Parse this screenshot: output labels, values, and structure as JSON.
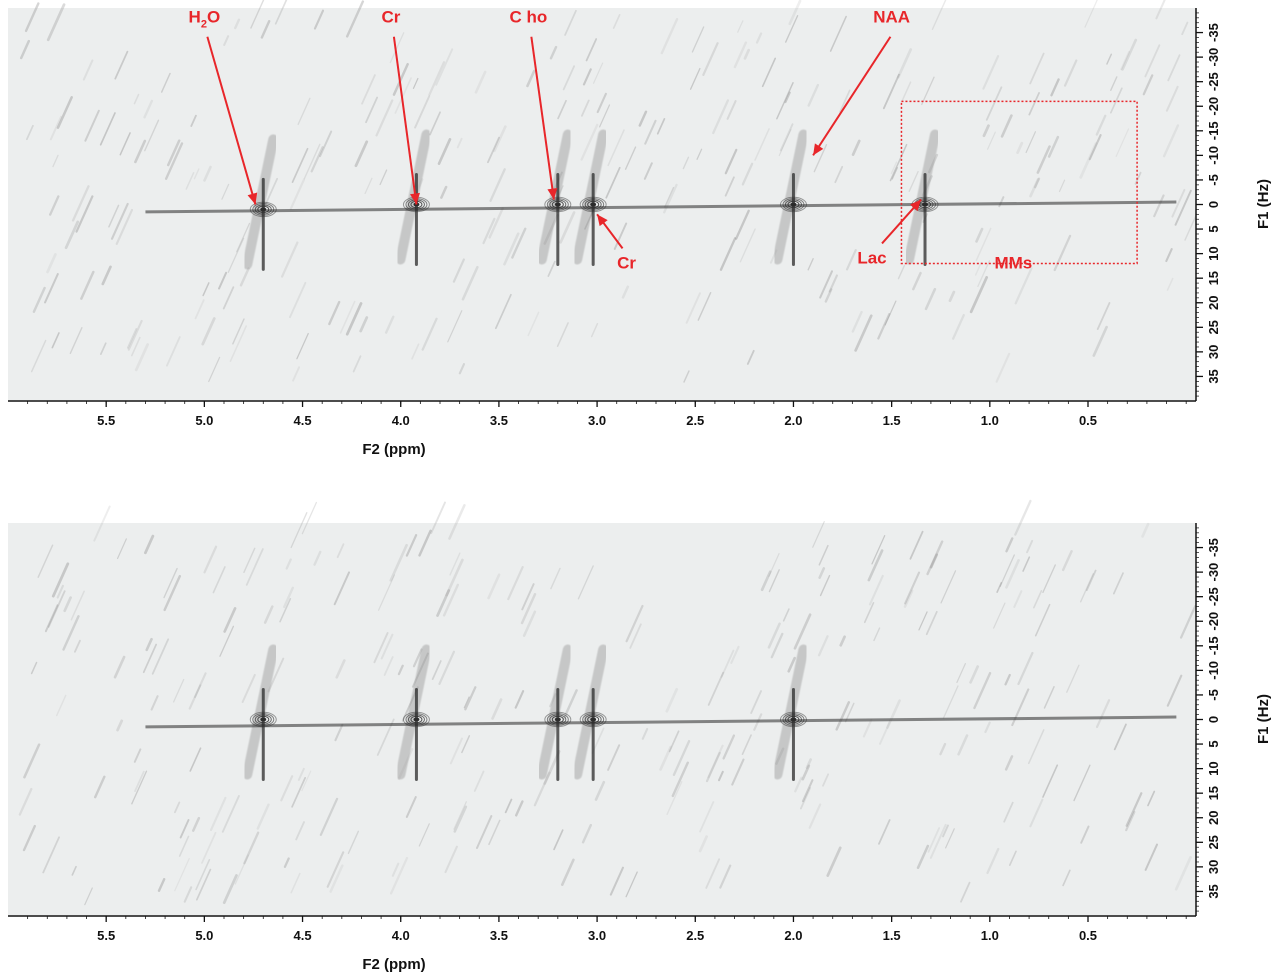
{
  "colors": {
    "plot_background": "#eceeee",
    "contour": "#2b2b2b",
    "contour_light": "#9a9a9a",
    "annotation": "#e8262a"
  },
  "chart_data": [
    {
      "type": "heatmap",
      "panel": "top",
      "xlabel": "F2 (ppm)",
      "ylabel": "F1 (Hz)",
      "xlim": [
        6.0,
        -0.05
      ],
      "ylim": [
        -40,
        40
      ],
      "x_ticks": [
        "5.5",
        "5.0",
        "4.5",
        "4.0",
        "3.5",
        "3.0",
        "2.5",
        "2.0",
        "1.5",
        "1.0",
        "0.5"
      ],
      "x_tick_values": [
        5.5,
        5.0,
        4.5,
        4.0,
        3.5,
        3.0,
        2.5,
        2.0,
        1.5,
        1.0,
        0.5
      ],
      "y_ticks": [
        "-35",
        "-30",
        "-25",
        "-20",
        "-15",
        "-10",
        "-5",
        "0",
        "5",
        "10",
        "15",
        "20",
        "25",
        "30",
        "35"
      ],
      "y_tick_values": [
        -35,
        -30,
        -25,
        -20,
        -15,
        -10,
        -5,
        0,
        5,
        10,
        15,
        20,
        25,
        30,
        35
      ],
      "grid": false,
      "peaks": [
        {
          "name": "H2O",
          "ppm": 4.7,
          "hz": 1
        },
        {
          "name": "Cr",
          "ppm": 3.92,
          "hz": 0
        },
        {
          "name": "Cho",
          "ppm": 3.2,
          "hz": 0
        },
        {
          "name": "Cr",
          "ppm": 3.02,
          "hz": 0
        },
        {
          "name": "NAA",
          "ppm": 2.0,
          "hz": 0
        },
        {
          "name": "Lac",
          "ppm": 1.33,
          "hz": 0
        }
      ],
      "annotations": [
        {
          "text_main": "H",
          "text_sub": "2",
          "text_tail": "O",
          "ppm": 5.0,
          "hz": -37,
          "arrow_to": [
            4.74,
            0
          ]
        },
        {
          "text": "Cr",
          "ppm": 4.05,
          "hz": -37,
          "arrow_to": [
            3.92,
            0
          ]
        },
        {
          "text": "C ho",
          "ppm": 3.35,
          "hz": -37,
          "arrow_to": [
            3.22,
            -1
          ]
        },
        {
          "text": "NAA",
          "ppm": 1.5,
          "hz": -37,
          "arrow_to": [
            1.9,
            -10
          ]
        },
        {
          "text": "Cr",
          "ppm": 2.85,
          "hz": 13,
          "arrow_to": [
            3.0,
            2
          ]
        },
        {
          "text": "Lac",
          "ppm": 1.6,
          "hz": 12,
          "arrow_to": [
            1.35,
            -1
          ]
        },
        {
          "text": "MMs",
          "ppm": 0.88,
          "hz": 13
        }
      ],
      "region_box": {
        "label": "MMs",
        "ppm_range": [
          1.45,
          0.25
        ],
        "hz_range": [
          -21,
          12
        ]
      }
    },
    {
      "type": "heatmap",
      "panel": "bottom",
      "xlabel": "F2 (ppm)",
      "ylabel": "F1 (Hz)",
      "xlim": [
        6.0,
        -0.05
      ],
      "ylim": [
        -40,
        40
      ],
      "x_ticks": [
        "5.5",
        "5.0",
        "4.5",
        "4.0",
        "3.5",
        "3.0",
        "2.5",
        "2.0",
        "1.5",
        "1.0",
        "0.5"
      ],
      "x_tick_values": [
        5.5,
        5.0,
        4.5,
        4.0,
        3.5,
        3.0,
        2.5,
        2.0,
        1.5,
        1.0,
        0.5
      ],
      "y_ticks": [
        "-35",
        "-30",
        "-25",
        "-20",
        "-15",
        "-10",
        "-5",
        "0",
        "5",
        "10",
        "15",
        "20",
        "25",
        "30",
        "35"
      ],
      "y_tick_values": [
        -35,
        -30,
        -25,
        -20,
        -15,
        -10,
        -5,
        0,
        5,
        10,
        15,
        20,
        25,
        30,
        35
      ],
      "grid": false,
      "peaks": [
        {
          "name": "H2O",
          "ppm": 4.7,
          "hz": 0
        },
        {
          "name": "Cr",
          "ppm": 3.92,
          "hz": 0
        },
        {
          "name": "Cho",
          "ppm": 3.2,
          "hz": 0
        },
        {
          "name": "Cr",
          "ppm": 3.02,
          "hz": 0
        },
        {
          "name": "NAA",
          "ppm": 2.0,
          "hz": 0
        }
      ]
    }
  ]
}
